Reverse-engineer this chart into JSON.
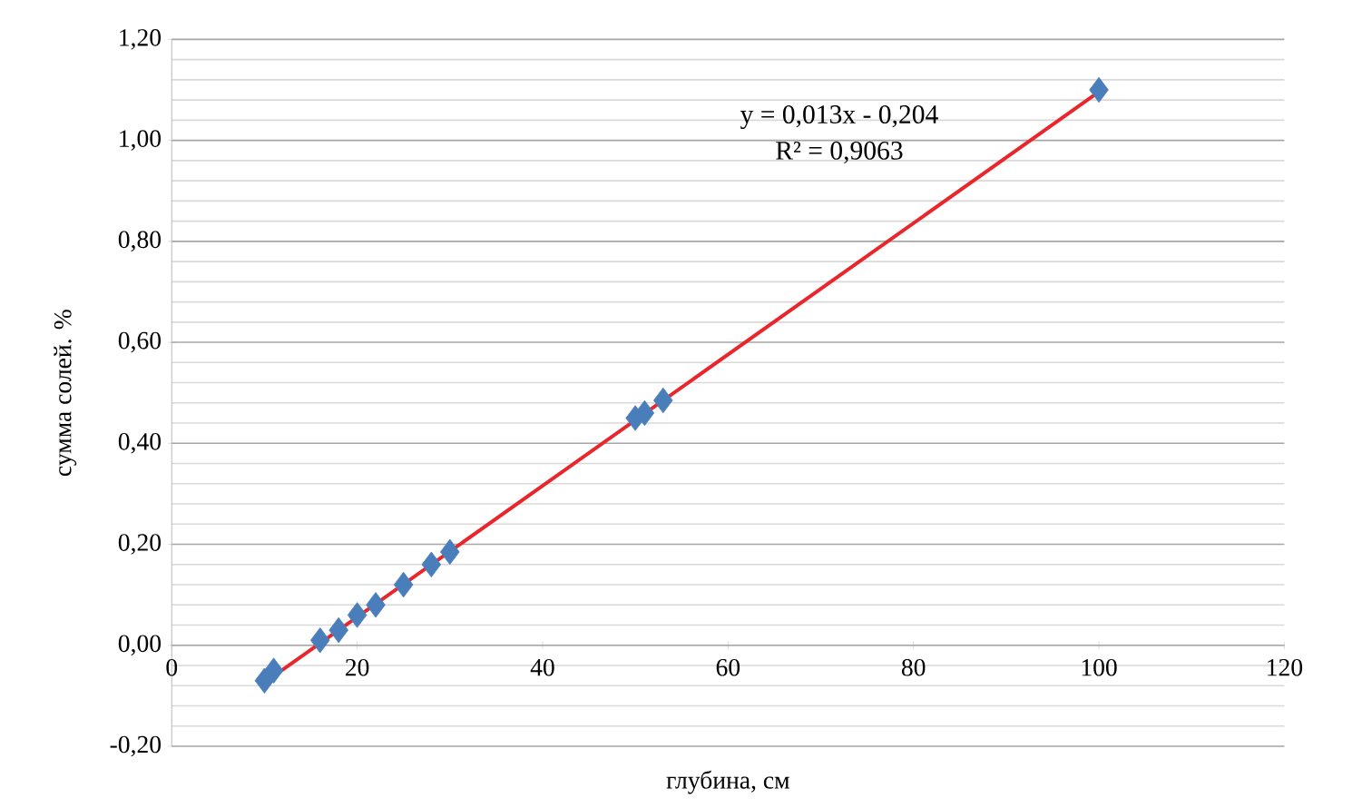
{
  "chart_data": {
    "type": "scatter",
    "xlabel": "глубина, см",
    "ylabel": "сумма солей. %",
    "xlim": [
      0,
      120
    ],
    "xticks": [
      0,
      20,
      40,
      60,
      80,
      100,
      120
    ],
    "ylim": [
      -0.2,
      1.2
    ],
    "yticks": [
      {
        "value": -0.2,
        "label": "-0,20"
      },
      {
        "value": 0,
        "label": "0,00"
      },
      {
        "value": 0.2,
        "label": "0,20"
      },
      {
        "value": 0.4,
        "label": "0,40"
      },
      {
        "value": 0.6,
        "label": "0,60"
      },
      {
        "value": 0.8,
        "label": "0,80"
      },
      {
        "value": 1.0,
        "label": "1,00"
      },
      {
        "value": 1.2,
        "label": "1,20"
      }
    ],
    "grid": "y",
    "series": [
      {
        "marker": "diamond",
        "color": "#4a7ebb",
        "x": [
          10,
          11,
          16,
          18,
          20,
          22,
          25,
          28,
          30,
          50,
          51,
          53,
          100
        ],
        "values": [
          -0.07,
          -0.05,
          0.01,
          0.03,
          0.06,
          0.08,
          0.12,
          0.16,
          0.185,
          0.45,
          0.46,
          0.485,
          1.1
        ]
      },
      {
        "type": "line",
        "color": "#e8262b",
        "x": [
          10,
          100
        ],
        "values": [
          -0.074,
          1.096
        ]
      }
    ],
    "annotations": [
      "y = 0,013x - 0,204",
      "R² = 0,9063"
    ]
  }
}
